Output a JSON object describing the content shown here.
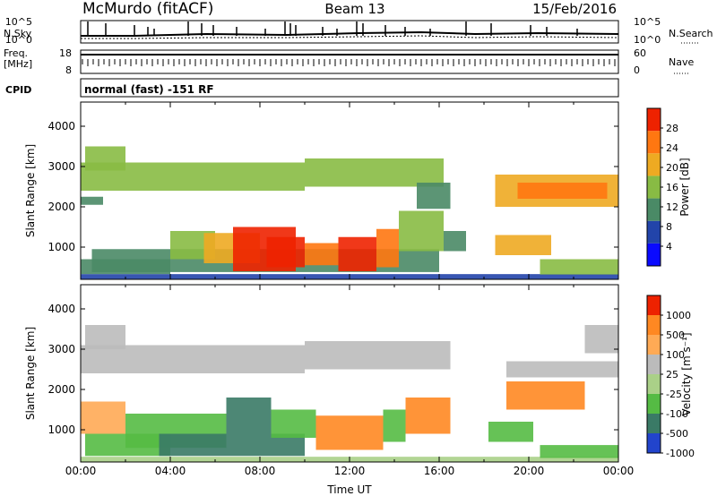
{
  "header": {
    "station": "McMurdo (fitACF)",
    "beam": "Beam 13",
    "date": "15/Feb/2016"
  },
  "summary_panels": {
    "nsky_label": "N.Sky",
    "nsearch_label": "N.Search",
    "noise_ticks": [
      "10^5",
      "10^0"
    ],
    "freq_label_1": "Freq.",
    "freq_label_2": "[MHz]",
    "freq_ticks": [
      "18",
      "8"
    ],
    "nave_label": "Nave",
    "nave_ticks": [
      "60",
      "0"
    ],
    "cpid_label": "CPID",
    "cpid_value": "normal (fast) -151 RF"
  },
  "chart_data": [
    {
      "type": "heatmap",
      "name": "power-panel",
      "ylabel": "Slant Range [km]",
      "xlabel": "",
      "x_range_hours": [
        0,
        24
      ],
      "ylim": [
        200,
        4600
      ],
      "yticks": [
        1000,
        2000,
        3000,
        4000
      ],
      "colorbar_label": "Power [dB]",
      "colorbar_ticks": [
        "28",
        "24",
        "20",
        "16",
        "12",
        "8",
        "4"
      ],
      "colors": [
        "#0a0aff",
        "#2244aa",
        "#4a8a66",
        "#88bb44",
        "#eeaa22",
        "#ff7711",
        "#ee2200"
      ],
      "regions": [
        {
          "t0": 0.0,
          "t1": 24.0,
          "r0": 200,
          "r1": 330,
          "level": 1
        },
        {
          "t0": 0.0,
          "t1": 4.0,
          "r0": 330,
          "r1": 700,
          "level": 2
        },
        {
          "t0": 0.5,
          "t1": 16.0,
          "r0": 380,
          "r1": 950,
          "level": 2
        },
        {
          "t0": 4.0,
          "t1": 6.0,
          "r0": 700,
          "r1": 1400,
          "level": 3
        },
        {
          "t0": 5.5,
          "t1": 8.0,
          "r0": 600,
          "r1": 1350,
          "level": 4
        },
        {
          "t0": 6.8,
          "t1": 9.6,
          "r0": 400,
          "r1": 1500,
          "level": 6
        },
        {
          "t0": 8.3,
          "t1": 10.0,
          "r0": 500,
          "r1": 1250,
          "level": 6
        },
        {
          "t0": 10.0,
          "t1": 11.5,
          "r0": 550,
          "r1": 1100,
          "level": 5
        },
        {
          "t0": 11.5,
          "t1": 13.2,
          "r0": 400,
          "r1": 1250,
          "level": 6
        },
        {
          "t0": 13.2,
          "t1": 14.2,
          "r0": 500,
          "r1": 1450,
          "level": 5
        },
        {
          "t0": 14.2,
          "t1": 16.2,
          "r0": 900,
          "r1": 1900,
          "level": 3
        },
        {
          "t0": 16.2,
          "t1": 17.2,
          "r0": 900,
          "r1": 1400,
          "level": 2
        },
        {
          "t0": 18.5,
          "t1": 21.0,
          "r0": 800,
          "r1": 1300,
          "level": 4
        },
        {
          "t0": 20.5,
          "t1": 24.0,
          "r0": 320,
          "r1": 700,
          "level": 3
        },
        {
          "t0": 0.0,
          "t1": 10.0,
          "r0": 2400,
          "r1": 3100,
          "level": 3
        },
        {
          "t0": 0.2,
          "t1": 2.0,
          "r0": 2900,
          "r1": 3500,
          "level": 3
        },
        {
          "t0": 10.0,
          "t1": 16.2,
          "r0": 2500,
          "r1": 3200,
          "level": 3
        },
        {
          "t0": 15.0,
          "t1": 16.5,
          "r0": 1950,
          "r1": 2600,
          "level": 2
        },
        {
          "t0": 18.5,
          "t1": 24.0,
          "r0": 2000,
          "r1": 2800,
          "level": 4
        },
        {
          "t0": 19.5,
          "t1": 23.5,
          "r0": 2200,
          "r1": 2600,
          "level": 5
        },
        {
          "t0": 0.0,
          "t1": 1.0,
          "r0": 2050,
          "r1": 2250,
          "level": 2
        }
      ]
    },
    {
      "type": "heatmap",
      "name": "velocity-panel",
      "ylabel": "Slant Range [km]",
      "xlabel": "Time UT",
      "x_range_hours": [
        0,
        24
      ],
      "ylim": [
        200,
        4600
      ],
      "yticks": [
        1000,
        2000,
        3000,
        4000
      ],
      "xtick_labels": [
        "00:00",
        "04:00",
        "08:00",
        "12:00",
        "16:00",
        "20:00",
        "00:00"
      ],
      "colorbar_label": "Velocity [m s⁻¹]",
      "colorbar_ticks": [
        "1000",
        "500",
        "100",
        "25",
        "-25",
        "-100",
        "-500",
        "-1000"
      ],
      "colors": [
        "#2244cc",
        "#3a7a66",
        "#55bb44",
        "#aad088",
        "#bbbbbb",
        "#ffaa55",
        "#ff8822",
        "#ee2200"
      ],
      "regions": [
        {
          "t0": 0.0,
          "t1": 24.0,
          "r0": 200,
          "r1": 330,
          "level": 3
        },
        {
          "t0": 0.2,
          "t1": 4.0,
          "r0": 350,
          "r1": 900,
          "level": 2
        },
        {
          "t0": 0.0,
          "t1": 2.0,
          "r0": 900,
          "r1": 1700,
          "level": 5
        },
        {
          "t0": 2.0,
          "t1": 6.5,
          "r0": 550,
          "r1": 1400,
          "level": 2
        },
        {
          "t0": 3.5,
          "t1": 10.0,
          "r0": 350,
          "r1": 900,
          "level": 1
        },
        {
          "t0": 6.5,
          "t1": 8.5,
          "r0": 900,
          "r1": 1800,
          "level": 1
        },
        {
          "t0": 8.5,
          "t1": 10.5,
          "r0": 800,
          "r1": 1500,
          "level": 2
        },
        {
          "t0": 10.5,
          "t1": 13.5,
          "r0": 500,
          "r1": 1350,
          "level": 6
        },
        {
          "t0": 13.5,
          "t1": 14.5,
          "r0": 700,
          "r1": 1500,
          "level": 2
        },
        {
          "t0": 14.5,
          "t1": 16.5,
          "r0": 900,
          "r1": 1800,
          "level": 6
        },
        {
          "t0": 18.2,
          "t1": 20.2,
          "r0": 700,
          "r1": 1200,
          "level": 2
        },
        {
          "t0": 19.0,
          "t1": 22.5,
          "r0": 1500,
          "r1": 2200,
          "level": 6
        },
        {
          "t0": 20.5,
          "t1": 24.0,
          "r0": 300,
          "r1": 620,
          "level": 2
        },
        {
          "t0": 0.0,
          "t1": 10.0,
          "r0": 2400,
          "r1": 3100,
          "level": 4
        },
        {
          "t0": 0.2,
          "t1": 2.0,
          "r0": 3000,
          "r1": 3600,
          "level": 4
        },
        {
          "t0": 10.0,
          "t1": 16.5,
          "r0": 2500,
          "r1": 3200,
          "level": 4
        },
        {
          "t0": 19.0,
          "t1": 24.0,
          "r0": 2300,
          "r1": 2700,
          "level": 4
        },
        {
          "t0": 22.5,
          "t1": 24.0,
          "r0": 2900,
          "r1": 3600,
          "level": 4
        }
      ]
    }
  ]
}
